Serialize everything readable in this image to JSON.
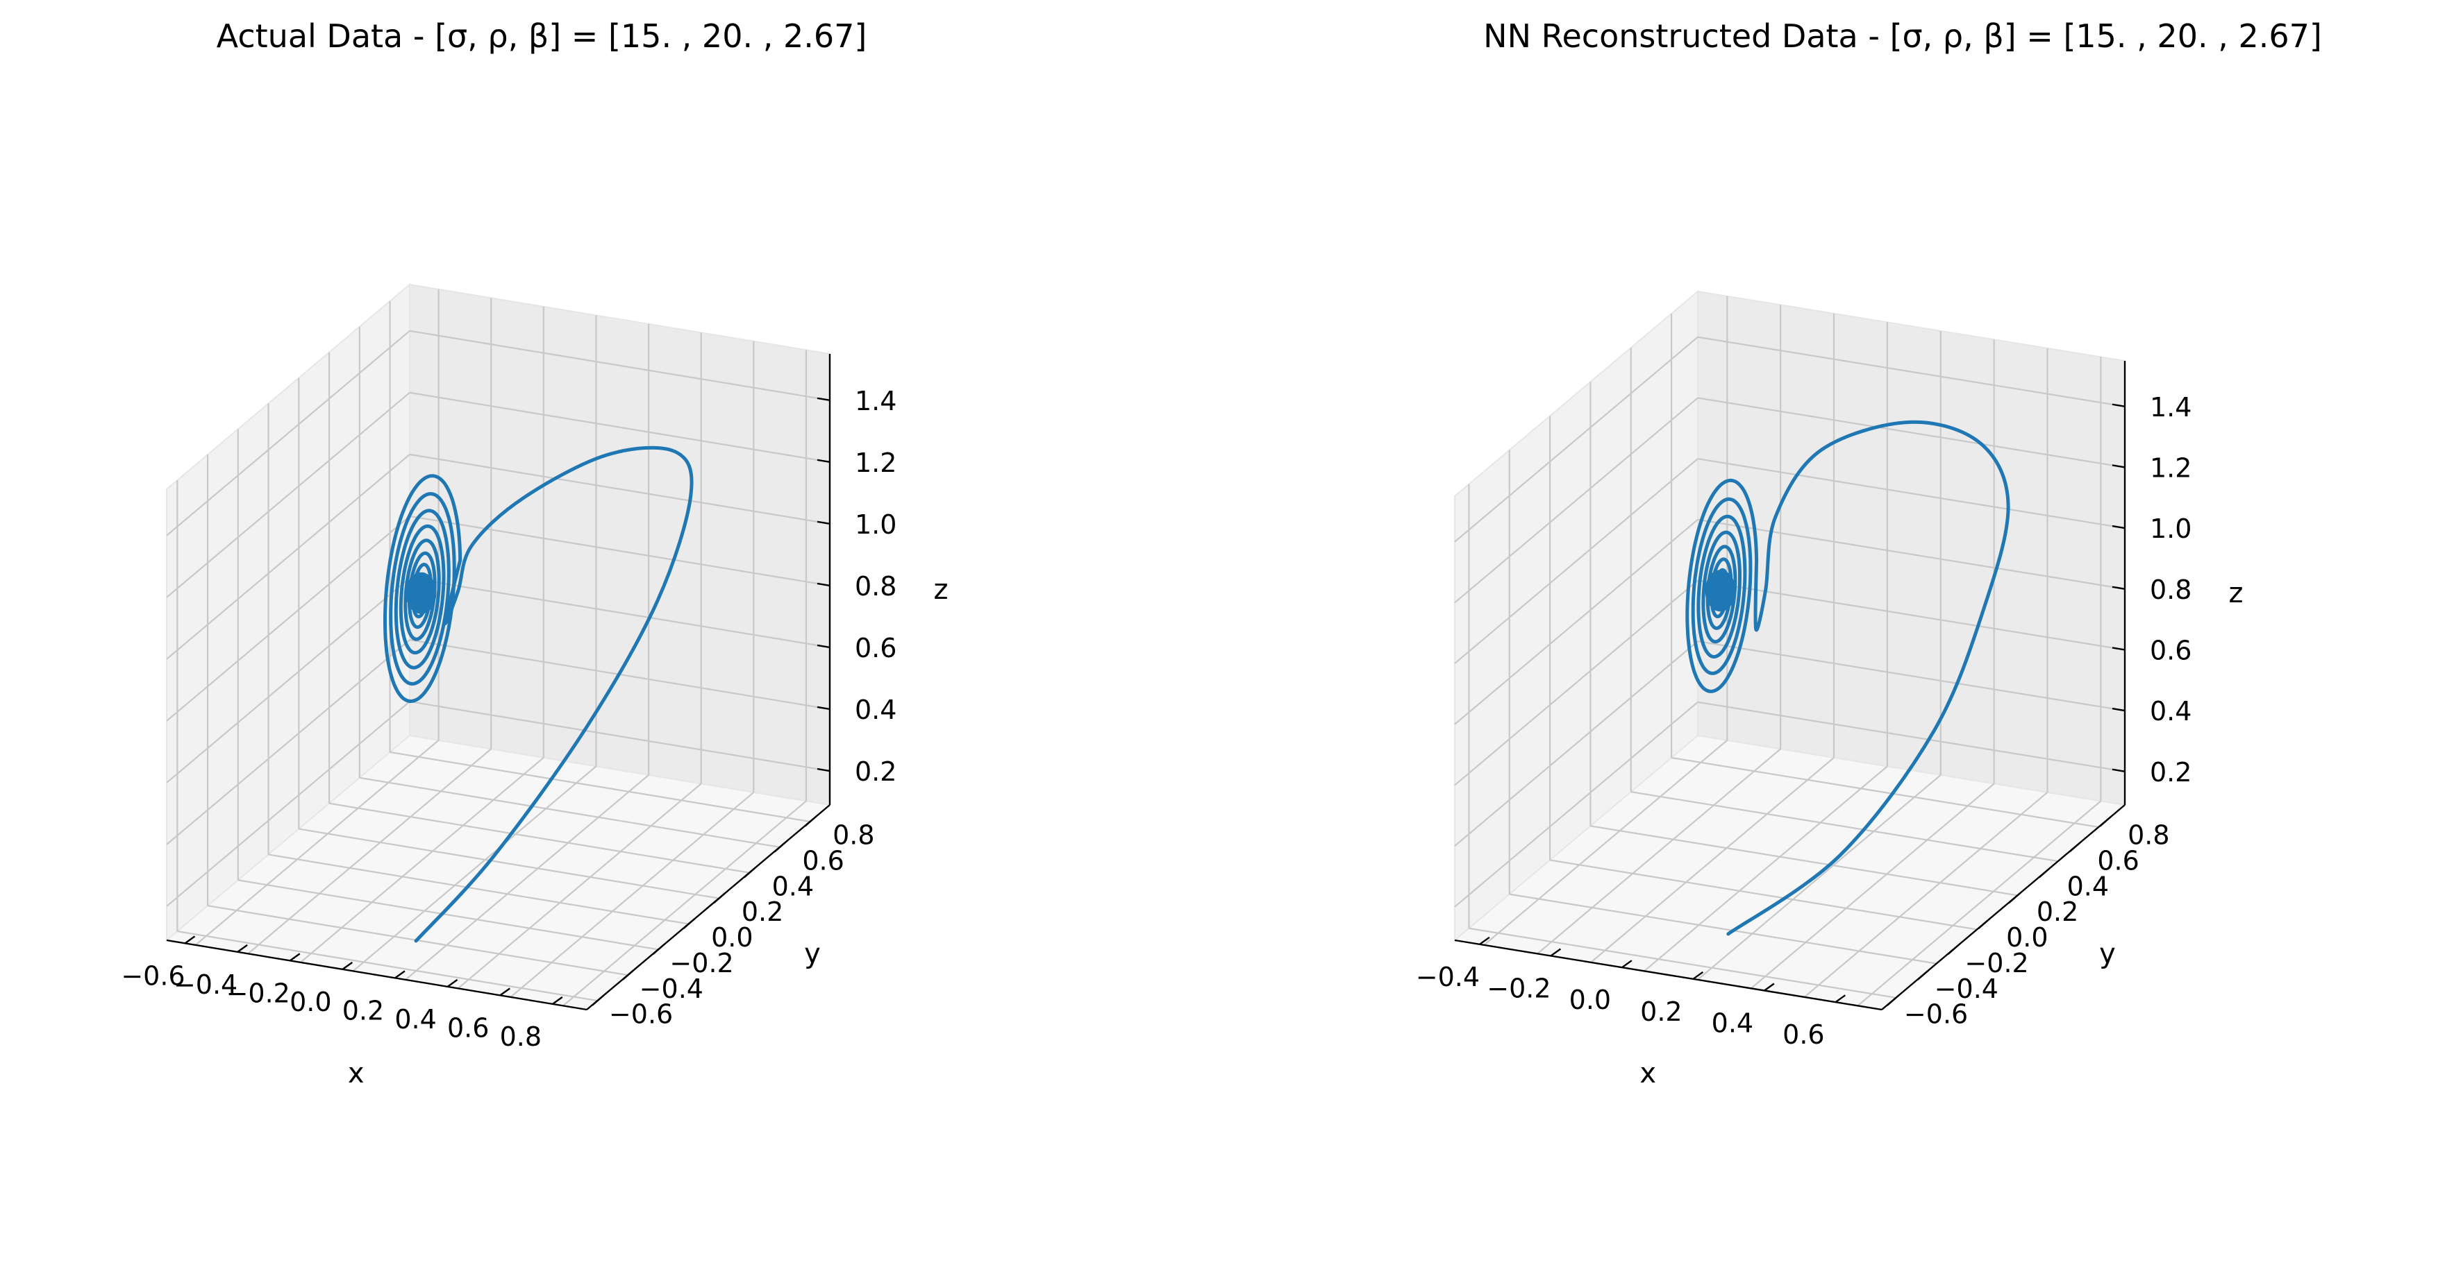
{
  "chart_data": [
    {
      "type": "line3d",
      "title": "Actual Data - [σ, ρ, β] = [15.  , 20.  ,  2.67]",
      "xlabel": "x",
      "ylabel": "y",
      "zlabel": "z",
      "xlim": [
        -0.6,
        0.8
      ],
      "ylim": [
        -0.6,
        0.9
      ],
      "zlim": [
        0.1,
        1.5
      ],
      "xticks": [
        "−0.6",
        "−0.4",
        "−0.2",
        "0.0",
        "0.2",
        "0.4",
        "0.6",
        "0.8"
      ],
      "yticks": [
        "−0.6",
        "−0.4",
        "−0.2",
        "0.0",
        "0.2",
        "0.4",
        "0.6",
        "0.8"
      ],
      "zticks": [
        "0.2",
        "0.4",
        "0.6",
        "0.8",
        "1.0",
        "1.2",
        "1.4"
      ],
      "grid": true,
      "color": "#1f77b4",
      "series": [
        {
          "spiral_center": {
            "x": -0.4,
            "y": 0.6,
            "z": 0.7
          },
          "spiral_radius_max": 0.26,
          "spiral_turns": 10,
          "points": [
            {
              "x": -0.32,
              "y": 0.6,
              "z": 0.62
            },
            {
              "x": -0.25,
              "y": 0.55,
              "z": 0.75
            },
            {
              "x": -0.15,
              "y": 0.45,
              "z": 0.95
            },
            {
              "x": 0.05,
              "y": 0.4,
              "z": 1.15
            },
            {
              "x": 0.3,
              "y": 0.45,
              "z": 1.3
            },
            {
              "x": 0.5,
              "y": 0.5,
              "z": 1.32
            },
            {
              "x": 0.58,
              "y": 0.45,
              "z": 1.22
            },
            {
              "x": 0.55,
              "y": 0.3,
              "z": 0.95
            },
            {
              "x": 0.45,
              "y": 0.05,
              "z": 0.65
            },
            {
              "x": 0.3,
              "y": -0.25,
              "z": 0.35
            },
            {
              "x": 0.15,
              "y": -0.45,
              "z": 0.15
            }
          ]
        }
      ]
    },
    {
      "type": "line3d",
      "title": "NN Reconstructed Data - [σ, ρ, β] = [15.  , 20.  ,  2.67]",
      "xlabel": "x",
      "ylabel": "y",
      "zlabel": "z",
      "xlim": [
        -0.5,
        0.7
      ],
      "ylim": [
        -0.6,
        0.9
      ],
      "zlim": [
        0.1,
        1.45
      ],
      "xticks": [
        "−0.4",
        "−0.2",
        "0.0",
        "0.2",
        "0.4",
        "0.6"
      ],
      "yticks": [
        "−0.6",
        "−0.4",
        "−0.2",
        "0.0",
        "0.2",
        "0.4",
        "0.6",
        "0.8"
      ],
      "zticks": [
        "0.2",
        "0.4",
        "0.6",
        "0.8",
        "1.0",
        "1.2",
        "1.4"
      ],
      "grid": true,
      "color": "#1f77b4",
      "series": [
        {
          "spiral_center": {
            "x": -0.3,
            "y": 0.6,
            "z": 0.7
          },
          "spiral_radius_max": 0.24,
          "spiral_turns": 9,
          "points": [
            {
              "x": -0.2,
              "y": 0.6,
              "z": 0.6
            },
            {
              "x": -0.15,
              "y": 0.55,
              "z": 0.75
            },
            {
              "x": -0.1,
              "y": 0.5,
              "z": 1.0
            },
            {
              "x": 0.05,
              "y": 0.45,
              "z": 1.25
            },
            {
              "x": 0.3,
              "y": 0.45,
              "z": 1.38
            },
            {
              "x": 0.5,
              "y": 0.45,
              "z": 1.35
            },
            {
              "x": 0.6,
              "y": 0.4,
              "z": 1.2
            },
            {
              "x": 0.6,
              "y": 0.25,
              "z": 0.95
            },
            {
              "x": 0.55,
              "y": 0.05,
              "z": 0.65
            },
            {
              "x": 0.4,
              "y": -0.2,
              "z": 0.35
            },
            {
              "x": 0.2,
              "y": -0.45,
              "z": 0.18
            }
          ]
        }
      ]
    }
  ]
}
